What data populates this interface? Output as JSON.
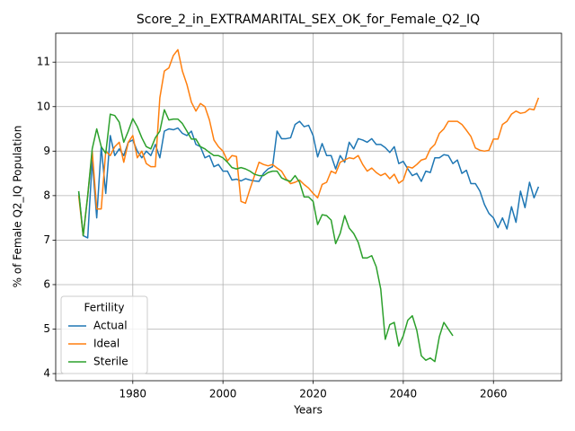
{
  "chart_data": {
    "type": "line",
    "title": "Score_2_in_EXTRAMARITAL_SEX_OK_for_Female_Q2_IQ",
    "xlabel": "Years",
    "ylabel": "% of Female Q2_IQ Population",
    "legend_title": "Fertility",
    "legend": "lower left",
    "grid": true,
    "x": [
      1968,
      1969,
      1970,
      1971,
      1972,
      1973,
      1974,
      1975,
      1976,
      1977,
      1978,
      1979,
      1980,
      1981,
      1982,
      1983,
      1984,
      1985,
      1986,
      1987,
      1988,
      1989,
      1990,
      1991,
      1992,
      1993,
      1994,
      1995,
      1996,
      1997,
      1998,
      1999,
      2000,
      2001,
      2002,
      2003,
      2004,
      2005,
      2006,
      2007,
      2008,
      2009,
      2010,
      2011,
      2012,
      2013,
      2014,
      2015,
      2016,
      2017,
      2018,
      2019,
      2020,
      2021,
      2022,
      2023,
      2024,
      2025,
      2026,
      2027,
      2028,
      2029,
      2030,
      2031,
      2032,
      2033,
      2034,
      2035,
      2036,
      2037,
      2038,
      2039,
      2040,
      2041,
      2042,
      2043,
      2044,
      2045,
      2046,
      2047,
      2048,
      2049,
      2050,
      2051,
      2052,
      2053,
      2054,
      2055,
      2056,
      2057,
      2058,
      2059,
      2060,
      2061,
      2062,
      2063,
      2064,
      2065,
      2066,
      2067,
      2068,
      2069,
      2070
    ],
    "series": [
      {
        "name": "Actual",
        "color": "#1f77b4",
        "values": [
          8.1,
          7.1,
          7.05,
          8.8,
          7.5,
          9.1,
          8.05,
          9.35,
          8.9,
          9.05,
          8.9,
          9.2,
          9.25,
          9.0,
          8.85,
          9.0,
          8.9,
          9.15,
          8.85,
          9.45,
          9.5,
          9.48,
          9.52,
          9.4,
          9.35,
          9.45,
          9.15,
          9.1,
          8.85,
          8.9,
          8.65,
          8.7,
          8.55,
          8.55,
          8.35,
          8.37,
          8.33,
          8.38,
          8.35,
          8.33,
          8.32,
          8.5,
          8.6,
          8.65,
          9.45,
          9.28,
          9.28,
          9.3,
          9.6,
          9.67,
          9.55,
          9.58,
          9.35,
          8.87,
          9.17,
          8.9,
          8.9,
          8.6,
          8.9,
          8.75,
          9.2,
          9.05,
          9.28,
          9.25,
          9.2,
          9.28,
          9.15,
          9.15,
          9.08,
          8.97,
          9.1,
          8.72,
          8.77,
          8.6,
          8.45,
          8.5,
          8.32,
          8.55,
          8.52,
          8.85,
          8.85,
          8.92,
          8.9,
          8.72,
          8.8,
          8.5,
          8.57,
          8.27,
          8.27,
          8.1,
          7.8,
          7.6,
          7.5,
          7.28,
          7.5,
          7.25,
          7.75,
          7.4,
          8.1,
          7.73,
          8.3,
          7.95,
          8.2
        ]
      },
      {
        "name": "Ideal",
        "color": "#ff7f0e",
        "values": [
          8.0,
          7.1,
          8.0,
          9.0,
          7.7,
          7.7,
          9.0,
          8.9,
          9.1,
          9.2,
          8.75,
          9.2,
          9.35,
          8.85,
          9.0,
          8.72,
          8.65,
          8.65,
          10.2,
          10.8,
          10.87,
          11.15,
          11.28,
          10.8,
          10.5,
          10.1,
          9.9,
          10.07,
          10.0,
          9.7,
          9.25,
          9.1,
          9.0,
          8.78,
          8.9,
          8.88,
          7.87,
          7.83,
          8.15,
          8.45,
          8.75,
          8.7,
          8.67,
          8.7,
          8.62,
          8.55,
          8.38,
          8.27,
          8.3,
          8.35,
          8.25,
          8.17,
          8.05,
          7.95,
          8.25,
          8.3,
          8.55,
          8.5,
          8.75,
          8.8,
          8.85,
          8.83,
          8.9,
          8.7,
          8.55,
          8.62,
          8.52,
          8.45,
          8.5,
          8.38,
          8.48,
          8.28,
          8.35,
          8.65,
          8.62,
          8.7,
          8.8,
          8.83,
          9.05,
          9.15,
          9.4,
          9.5,
          9.67,
          9.67,
          9.67,
          9.6,
          9.47,
          9.33,
          9.07,
          9.02,
          9.0,
          9.02,
          9.27,
          9.27,
          9.6,
          9.67,
          9.83,
          9.9,
          9.85,
          9.87,
          9.95,
          9.93,
          10.2
        ]
      },
      {
        "name": "Sterile",
        "color": "#2ca02c",
        "values": [
          8.1,
          7.1,
          8.0,
          9.05,
          9.5,
          9.1,
          8.95,
          9.83,
          9.8,
          9.65,
          9.2,
          9.45,
          9.73,
          9.55,
          9.3,
          9.1,
          9.05,
          9.3,
          9.45,
          9.93,
          9.7,
          9.72,
          9.72,
          9.62,
          9.45,
          9.27,
          9.27,
          9.1,
          9.05,
          8.97,
          8.9,
          8.9,
          8.85,
          8.75,
          8.63,
          8.6,
          8.63,
          8.6,
          8.55,
          8.48,
          8.45,
          8.45,
          8.52,
          8.55,
          8.55,
          8.4,
          8.35,
          8.32,
          8.45,
          8.3,
          7.97,
          7.97,
          7.87,
          7.35,
          7.57,
          7.55,
          7.45,
          6.92,
          7.15,
          7.55,
          7.27,
          7.15,
          6.95,
          6.6,
          6.6,
          6.65,
          6.4,
          5.9,
          4.77,
          5.1,
          5.15,
          4.62,
          4.85,
          5.2,
          5.3,
          4.97,
          4.4,
          4.3,
          4.35,
          4.27,
          4.83,
          5.15,
          5.0,
          4.85,
          null,
          null,
          null,
          null,
          null,
          null,
          null,
          null,
          null,
          null,
          null,
          null,
          null,
          null,
          null,
          null,
          null,
          null,
          null
        ]
      }
    ],
    "xlim": [
      1962.9,
      2075.1
    ],
    "xticks": [
      1980,
      2000,
      2020,
      2040,
      2060
    ],
    "ylim": [
      3.84,
      11.65
    ],
    "yticks": [
      4,
      5,
      6,
      7,
      8,
      9,
      10,
      11
    ]
  }
}
